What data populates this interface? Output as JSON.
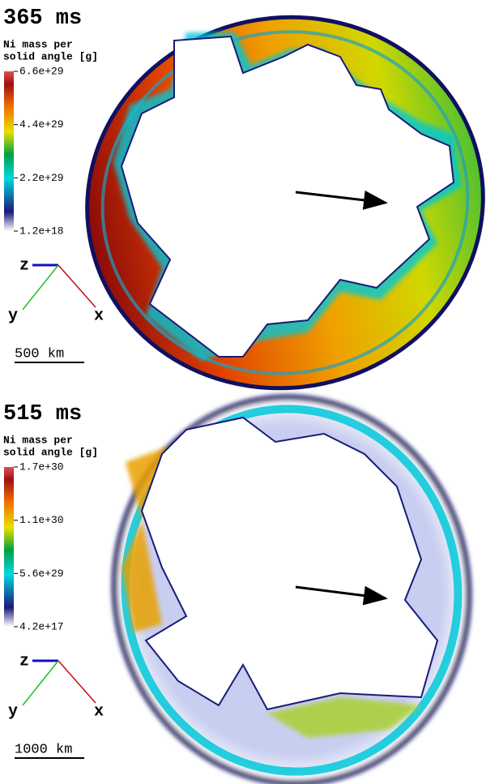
{
  "panels": [
    {
      "time": "365 ms",
      "colorbar": {
        "label_lines": [
          "Ni mass per",
          "solid angle [g]"
        ],
        "ticks": [
          "6.6e+29",
          "4.4e+29",
          "2.2e+29",
          "1.2e+18"
        ]
      },
      "axes": {
        "z": "z",
        "y": "y",
        "x": "x"
      },
      "scale": "500 km"
    },
    {
      "time": "515 ms",
      "colorbar": {
        "label_lines": [
          "Ni mass per",
          "solid angle [g]"
        ],
        "ticks": [
          "1.7e+30",
          "1.1e+30",
          "5.6e+29",
          "4.2e+17"
        ]
      },
      "axes": {
        "z": "z",
        "y": "y",
        "x": "x"
      },
      "scale": "1000 km"
    }
  ]
}
